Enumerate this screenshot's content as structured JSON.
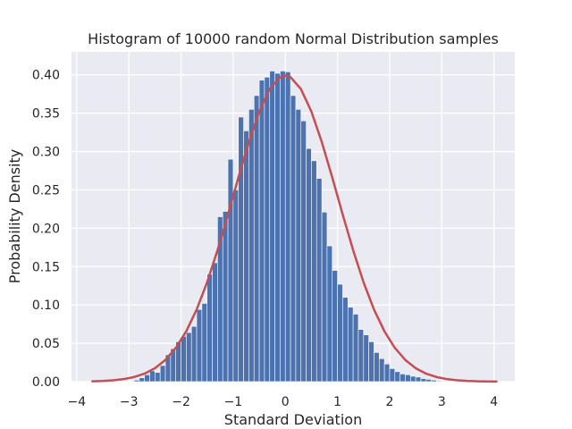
{
  "chart_data": {
    "type": "bar",
    "title": "Histogram of 10000 random Normal Distribution samples",
    "xlabel": "Standard Deviation",
    "ylabel": "Probability Density",
    "xlim": [
      -4.1,
      4.4
    ],
    "ylim": [
      0,
      0.43
    ],
    "xticks": [
      -4,
      -3,
      -2,
      -1,
      0,
      1,
      2,
      3,
      4
    ],
    "xtick_labels": [
      "−4",
      "−3",
      "−2",
      "−1",
      "0",
      "1",
      "2",
      "3",
      "4"
    ],
    "yticks": [
      0,
      0.05,
      0.1,
      0.15,
      0.2,
      0.25,
      0.3,
      0.35,
      0.4
    ],
    "ytick_labels": [
      "0.00",
      "0.05",
      "0.10",
      "0.15",
      "0.20",
      "0.25",
      "0.30",
      "0.35",
      "0.40"
    ],
    "grid": true,
    "bar_color": "#4c72b0",
    "curve_color": "#c44e52",
    "background_color": "#eaeaf2",
    "histogram": {
      "bin_edges": [
        -2.9,
        -2.8,
        -2.7,
        -2.6,
        -2.5,
        -2.4,
        -2.3,
        -2.2,
        -2.1,
        -2.0,
        -1.9,
        -1.8,
        -1.7,
        -1.6,
        -1.5,
        -1.4,
        -1.3,
        -1.2,
        -1.1,
        -1.0,
        -0.9,
        -0.8,
        -0.7,
        -0.6,
        -0.5,
        -0.4,
        -0.3,
        -0.2,
        -0.1,
        0.0,
        0.1,
        0.2,
        0.3,
        0.4,
        0.5,
        0.6,
        0.7,
        0.8,
        0.9,
        1.0,
        1.1,
        1.2,
        1.3,
        1.4,
        1.5,
        1.6,
        1.7,
        1.8,
        1.9,
        2.0,
        2.1,
        2.2,
        2.3,
        2.4,
        2.5,
        2.6,
        2.7,
        2.8,
        2.9,
        3.0
      ],
      "densities": [
        0.002,
        0.005,
        0.009,
        0.014,
        0.012,
        0.021,
        0.035,
        0.043,
        0.052,
        0.059,
        0.064,
        0.072,
        0.094,
        0.102,
        0.14,
        0.155,
        0.215,
        0.222,
        0.29,
        0.25,
        0.345,
        0.327,
        0.355,
        0.373,
        0.393,
        0.397,
        0.405,
        0.402,
        0.405,
        0.404,
        0.373,
        0.355,
        0.34,
        0.304,
        0.288,
        0.265,
        0.221,
        0.177,
        0.145,
        0.127,
        0.11,
        0.097,
        0.088,
        0.068,
        0.061,
        0.052,
        0.038,
        0.03,
        0.023,
        0.017,
        0.013,
        0.01,
        0.009,
        0.007,
        0.006,
        0.004,
        0.003,
        0.002,
        0.001
      ]
    },
    "curve": {
      "name": "",
      "x": [
        -3.7,
        -3.5,
        -3.3,
        -3.1,
        -2.9,
        -2.7,
        -2.5,
        -2.3,
        -2.1,
        -1.9,
        -1.7,
        -1.5,
        -1.3,
        -1.1,
        -0.9,
        -0.7,
        -0.5,
        -0.3,
        -0.1,
        0.0,
        0.1,
        0.3,
        0.5,
        0.7,
        0.9,
        1.1,
        1.3,
        1.5,
        1.7,
        1.9,
        2.1,
        2.3,
        2.5,
        2.7,
        2.9,
        3.1,
        3.3,
        3.5,
        3.7,
        3.9,
        4.05
      ],
      "y": [
        0.0004,
        0.0009,
        0.0017,
        0.0033,
        0.006,
        0.0104,
        0.0175,
        0.0283,
        0.044,
        0.0656,
        0.094,
        0.1295,
        0.1714,
        0.2179,
        0.2661,
        0.3123,
        0.3521,
        0.3814,
        0.397,
        0.3989,
        0.397,
        0.3814,
        0.3521,
        0.3123,
        0.2661,
        0.2179,
        0.1714,
        0.1295,
        0.094,
        0.0656,
        0.044,
        0.0283,
        0.0175,
        0.0104,
        0.006,
        0.0033,
        0.0017,
        0.0009,
        0.0004,
        0.0002,
        0.0001
      ]
    }
  }
}
